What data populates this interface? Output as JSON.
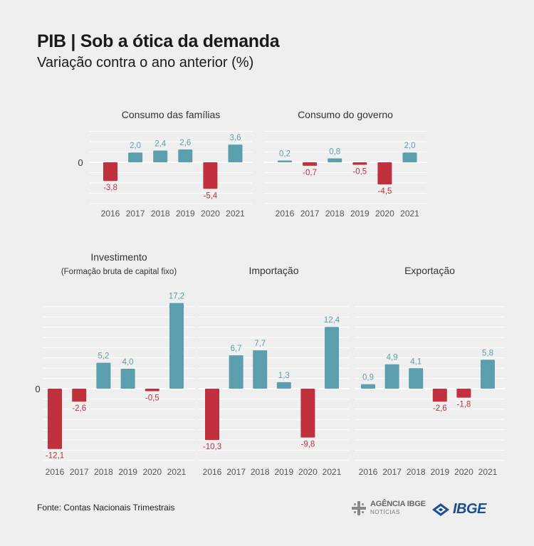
{
  "header": {
    "title": "PIB | Sob a ótica da demanda",
    "subtitle": "Variação contra o ano anterior (%)"
  },
  "footer": {
    "source": "Fonte: Contas Nacionais Trimestrais",
    "agencia_logo_text": "AGÊNCIA IBGE",
    "agencia_logo_sub": "NOTÍCIAS",
    "ibge_logo_text": "IBGE"
  },
  "colors": {
    "positive": "#5b9ead",
    "negative": "#c0303d",
    "grid": "#ffffff",
    "background": "#efefef"
  },
  "chart_data": [
    {
      "type": "bar",
      "title": "Consumo das famílias",
      "subtitle": "",
      "categories": [
        "2016",
        "2017",
        "2018",
        "2019",
        "2020",
        "2021"
      ],
      "values": [
        -3.8,
        2.0,
        2.4,
        2.6,
        -5.4,
        3.6
      ],
      "labels": [
        "-3,8",
        "2,0",
        "2,4",
        "2,6",
        "-5,4",
        "3,6"
      ],
      "zero_label": "0"
    },
    {
      "type": "bar",
      "title": "Consumo do governo",
      "subtitle": "",
      "categories": [
        "2016",
        "2017",
        "2018",
        "2019",
        "2020",
        "2021"
      ],
      "values": [
        0.2,
        -0.7,
        0.8,
        -0.5,
        -4.5,
        2.0
      ],
      "labels": [
        "0,2",
        "-0,7",
        "0,8",
        "-0,5",
        "-4,5",
        "2,0"
      ],
      "zero_label": ""
    },
    {
      "type": "bar",
      "title": "Investimento",
      "subtitle": "(Formação bruta de capital fixo)",
      "categories": [
        "2016",
        "2017",
        "2018",
        "2019",
        "2020",
        "2021"
      ],
      "values": [
        -12.1,
        -2.6,
        5.2,
        4.0,
        -0.5,
        17.2
      ],
      "labels": [
        "-12,1",
        "-2,6",
        "5,2",
        "4,0",
        "-0,5",
        "17,2"
      ],
      "zero_label": "0"
    },
    {
      "type": "bar",
      "title": "Importação",
      "subtitle": "",
      "categories": [
        "2016",
        "2017",
        "2018",
        "2019",
        "2020",
        "2021"
      ],
      "values": [
        -10.3,
        6.7,
        7.7,
        1.3,
        -9.8,
        12.4
      ],
      "labels": [
        "-10,3",
        "6,7",
        "7,7",
        "1,3",
        "-9,8",
        "12,4"
      ],
      "zero_label": ""
    },
    {
      "type": "bar",
      "title": "Exportação",
      "subtitle": "",
      "categories": [
        "2016",
        "2017",
        "2018",
        "2019",
        "2020",
        "2021"
      ],
      "values": [
        0.9,
        4.9,
        4.1,
        -2.6,
        -1.8,
        5.8
      ],
      "labels": [
        "0,9",
        "4,9",
        "4,1",
        "-2,6",
        "-1,8",
        "5,8"
      ],
      "zero_label": ""
    }
  ]
}
